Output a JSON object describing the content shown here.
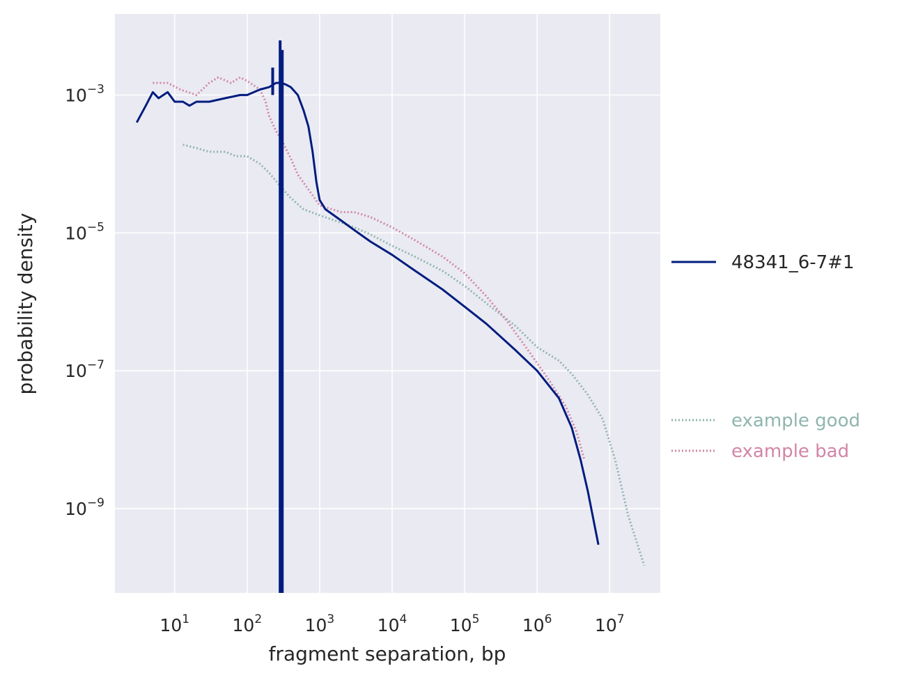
{
  "chart_data": {
    "type": "line",
    "xscale": "log",
    "yscale": "log",
    "xlabel": "fragment separation, bp",
    "ylabel": "probability density",
    "xlim": [
      1.5,
      50000000
    ],
    "ylim": [
      6e-11,
      0.015
    ],
    "grid": true,
    "x_ticks": [
      {
        "value": 10,
        "base": "10",
        "exp": "1"
      },
      {
        "value": 100,
        "base": "10",
        "exp": "2"
      },
      {
        "value": 1000,
        "base": "10",
        "exp": "3"
      },
      {
        "value": 10000,
        "base": "10",
        "exp": "4"
      },
      {
        "value": 100000,
        "base": "10",
        "exp": "5"
      },
      {
        "value": 1000000,
        "base": "10",
        "exp": "6"
      },
      {
        "value": 10000000,
        "base": "10",
        "exp": "7"
      }
    ],
    "y_ticks": [
      {
        "value": 0.001,
        "base": "10",
        "exp": "−3"
      },
      {
        "value": 1e-05,
        "base": "10",
        "exp": "−5"
      },
      {
        "value": 1e-07,
        "base": "10",
        "exp": "−7"
      },
      {
        "value": 1e-09,
        "base": "10",
        "exp": "−9"
      }
    ],
    "series": [
      {
        "name": "example good",
        "color": "#8fb5ae",
        "style": "dotted",
        "points": [
          [
            13,
            0.00019
          ],
          [
            20,
            0.00017
          ],
          [
            30,
            0.00015
          ],
          [
            50,
            0.00015
          ],
          [
            70,
            0.00013
          ],
          [
            100,
            0.00013
          ],
          [
            150,
            0.0001
          ],
          [
            200,
            7.5e-05
          ],
          [
            300,
            4.5e-05
          ],
          [
            400,
            3.2e-05
          ],
          [
            600,
            2.2e-05
          ],
          [
            1000,
            1.8e-05
          ],
          [
            2000,
            1.4e-05
          ],
          [
            3000,
            1.2e-05
          ],
          [
            5000,
            9.5e-06
          ],
          [
            10000,
            6.5e-06
          ],
          [
            20000,
            4.6e-06
          ],
          [
            50000,
            2.8e-06
          ],
          [
            100000,
            1.7e-06
          ],
          [
            200000,
            9.5e-07
          ],
          [
            500000,
            4.5e-07
          ],
          [
            1000000,
            2.2e-07
          ],
          [
            2000000,
            1.4e-07
          ],
          [
            3000000,
            9e-08
          ],
          [
            5000000,
            4.5e-08
          ],
          [
            8000000,
            2e-08
          ],
          [
            12000000,
            5e-09
          ],
          [
            18000000,
            8e-10
          ],
          [
            30000000,
            1.5e-10
          ]
        ]
      },
      {
        "name": "example bad",
        "color": "#d186a6",
        "style": "dotted",
        "points": [
          [
            5,
            0.0015
          ],
          [
            8,
            0.0015
          ],
          [
            12,
            0.0012
          ],
          [
            20,
            0.001
          ],
          [
            30,
            0.0015
          ],
          [
            40,
            0.0018
          ],
          [
            60,
            0.0015
          ],
          [
            80,
            0.0018
          ],
          [
            100,
            0.0016
          ],
          [
            150,
            0.0012
          ],
          [
            180,
            0.0008
          ],
          [
            200,
            0.0005
          ],
          [
            250,
            0.0003
          ],
          [
            300,
            0.00022
          ],
          [
            400,
            0.00012
          ],
          [
            500,
            7e-05
          ],
          [
            800,
            3.5e-05
          ],
          [
            1000,
            2.5e-05
          ],
          [
            2000,
            2e-05
          ],
          [
            3000,
            2e-05
          ],
          [
            5000,
            1.7e-05
          ],
          [
            10000,
            1.2e-05
          ],
          [
            20000,
            8e-06
          ],
          [
            50000,
            4.5e-06
          ],
          [
            100000,
            2.6e-06
          ],
          [
            200000,
            1.2e-06
          ],
          [
            400000,
            5e-07
          ],
          [
            800000,
            1.8e-07
          ],
          [
            1500000,
            7e-08
          ],
          [
            2500000,
            3e-08
          ],
          [
            3500000,
            1.3e-08
          ],
          [
            4500000,
            5e-09
          ]
        ]
      },
      {
        "name": "48341_6-7#1",
        "color": "#001c7f",
        "style": "solid",
        "points": [
          [
            3,
            0.0004
          ],
          [
            4,
            0.0007
          ],
          [
            5,
            0.0011
          ],
          [
            6,
            0.0009
          ],
          [
            8,
            0.0011
          ],
          [
            10,
            0.0008
          ],
          [
            13,
            0.0008
          ],
          [
            16,
            0.0007
          ],
          [
            20,
            0.0008
          ],
          [
            30,
            0.0008
          ],
          [
            50,
            0.0009
          ],
          [
            80,
            0.001
          ],
          [
            100,
            0.001
          ],
          [
            150,
            0.0012
          ],
          [
            200,
            0.0013
          ],
          [
            250,
            0.0015
          ],
          [
            300,
            0.0015
          ],
          [
            350,
            0.0014
          ],
          [
            400,
            0.0013
          ],
          [
            500,
            0.001
          ],
          [
            600,
            0.0006
          ],
          [
            700,
            0.00035
          ],
          [
            800,
            0.00015
          ],
          [
            900,
            5.5e-05
          ],
          [
            1000,
            3e-05
          ],
          [
            1200,
            2.2e-05
          ],
          [
            2000,
            1.5e-05
          ],
          [
            3000,
            1.1e-05
          ],
          [
            5000,
            7.5e-06
          ],
          [
            10000,
            4.8e-06
          ],
          [
            20000,
            2.9e-06
          ],
          [
            50000,
            1.5e-06
          ],
          [
            100000,
            8.5e-07
          ],
          [
            200000,
            4.8e-07
          ],
          [
            500000,
            2e-07
          ],
          [
            1000000,
            1e-07
          ],
          [
            2000000,
            4e-08
          ],
          [
            3000000,
            1.5e-08
          ],
          [
            4000000,
            5e-09
          ],
          [
            5000000,
            1.8e-09
          ],
          [
            7000000,
            3e-10
          ]
        ]
      }
    ],
    "spikes": [
      {
        "series": "48341_6-7#1",
        "x": 225,
        "y_from": 0.001,
        "y_to": 0.0025
      },
      {
        "series": "48341_6-7#1",
        "x": 285,
        "y_from": 6e-11,
        "y_to": 0.0062
      },
      {
        "series": "48341_6-7#1",
        "x": 305,
        "y_from": 6e-11,
        "y_to": 0.0045
      }
    ],
    "legend": [
      {
        "name": "48341_6-7#1",
        "color": "#001c7f",
        "style": "solid",
        "position": "right"
      },
      {
        "name": "example good",
        "color": "#8fb5ae",
        "style": "dotted",
        "position": "right"
      },
      {
        "name": "example bad",
        "color": "#d186a6",
        "style": "dotted",
        "position": "right"
      }
    ],
    "colors": {
      "plot_background": "#eaeaf2",
      "grid": "#ffffff"
    }
  }
}
